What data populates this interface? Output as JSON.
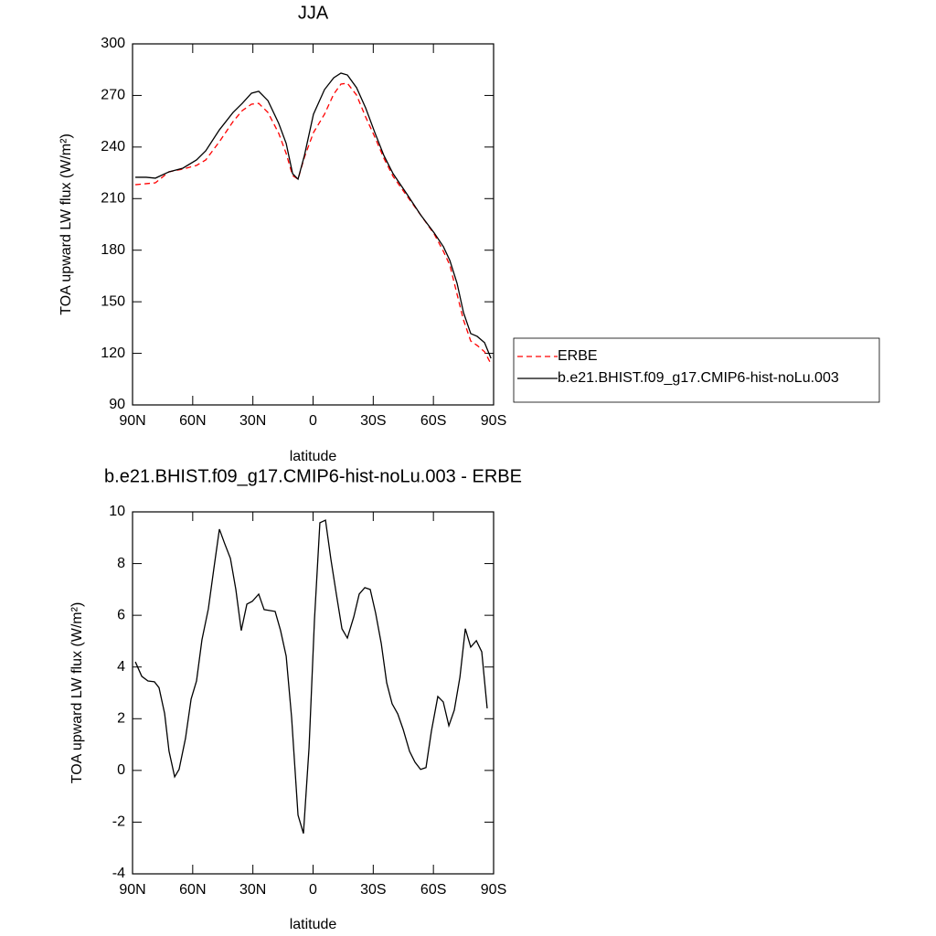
{
  "chart_data": [
    {
      "type": "line",
      "title": "JJA",
      "xlabel": "latitude",
      "ylabel": "TOA upward LW flux (W/m²)",
      "x": [
        88.6,
        83.2,
        78.6,
        71.8,
        64.9,
        58.1,
        53.5,
        46.7,
        39.9,
        35.3,
        30.7,
        27.1,
        22.5,
        17.1,
        13.4,
        10.2,
        7.5,
        4.3,
        -0.2,
        -5.7,
        -10.3,
        -13.9,
        -17.1,
        -21.7,
        -26.2,
        -30.8,
        -35.3,
        -39.9,
        -46.7,
        -53.6,
        -60.4,
        -65.0,
        -68.2,
        -71.8,
        -75.0,
        -78.6,
        -81.8,
        -85.5,
        -88.7
      ],
      "series": [
        {
          "name": "ERBE",
          "color": "#ff0000",
          "linestyle": "dashed",
          "values": [
            218.1,
            218.7,
            219.2,
            225.6,
            227.2,
            229.3,
            232.5,
            243.1,
            254.8,
            261.2,
            264.9,
            265.4,
            260.1,
            247.9,
            236.2,
            223.4,
            221.3,
            234.1,
            248.4,
            259.1,
            270.8,
            276.6,
            277.1,
            270.2,
            257.5,
            245.8,
            233.5,
            222.9,
            211.7,
            200.6,
            189.4,
            179.3,
            171.3,
            154.3,
            139.4,
            127.2,
            124.6,
            120.9,
            113.9
          ]
        },
        {
          "name": "b.e21.BHIST.f09_g17.CMIP6-hist-noLu.003",
          "color": "#000000",
          "linestyle": "solid",
          "values": [
            222.4,
            222.4,
            221.9,
            225.6,
            227.7,
            232.5,
            237.8,
            250.0,
            260.1,
            265.4,
            271.3,
            272.4,
            267.0,
            253.7,
            242.1,
            224.5,
            221.3,
            235.1,
            259.1,
            273.4,
            280.3,
            283.0,
            281.9,
            274.5,
            262.8,
            248.4,
            235.1,
            224.5,
            212.8,
            200.6,
            190.0,
            182.0,
            174.0,
            160.7,
            143.7,
            131.5,
            129.9,
            126.2,
            117.1
          ]
        }
      ],
      "xlim": [
        90,
        -90
      ],
      "xticks": [
        {
          "value": 90,
          "label": "90N"
        },
        {
          "value": 60,
          "label": "60N"
        },
        {
          "value": 30,
          "label": "30N"
        },
        0,
        {
          "value": -30,
          "label": "30S"
        },
        {
          "value": -60,
          "label": "60S"
        },
        {
          "value": -90,
          "label": "90S"
        }
      ],
      "ylim": [
        90,
        300
      ],
      "yticks": [
        90,
        120,
        150,
        180,
        210,
        240,
        270,
        300
      ],
      "legend": "outside-right"
    },
    {
      "type": "line",
      "title": "b.e21.BHIST.f09_g17.CMIP6-hist-noLu.003 - ERBE",
      "xlabel": "latitude",
      "ylabel": "TOA upward LW flux (W/m²)",
      "x": [
        88.6,
        85.4,
        82.3,
        79.1,
        76.8,
        74.0,
        71.8,
        69.0,
        66.8,
        63.6,
        60.8,
        58.1,
        55.4,
        52.2,
        49.4,
        46.7,
        44.0,
        41.2,
        38.5,
        35.8,
        33.0,
        30.3,
        27.1,
        24.4,
        18.9,
        16.2,
        13.4,
        10.7,
        7.5,
        4.8,
        2.0,
        -0.7,
        -3.4,
        -6.2,
        -8.9,
        -11.6,
        -14.4,
        -17.1,
        -20.3,
        -23.0,
        -25.8,
        -28.5,
        -31.2,
        -34.0,
        -36.7,
        -39.4,
        -42.2,
        -44.9,
        -48.1,
        -50.8,
        -53.6,
        -56.3,
        -59.0,
        -62.2,
        -64.9,
        -67.7,
        -70.4,
        -73.2,
        -75.9,
        -78.6,
        -81.4,
        -84.1,
        -86.8
      ],
      "values": [
        4.2,
        3.64,
        3.46,
        3.43,
        3.2,
        2.2,
        0.74,
        -0.25,
        0.04,
        1.24,
        2.76,
        3.46,
        5.05,
        6.25,
        7.84,
        9.33,
        8.76,
        8.2,
        7.0,
        5.41,
        6.43,
        6.54,
        6.82,
        6.22,
        6.15,
        5.41,
        4.42,
        2.05,
        -1.73,
        -2.44,
        0.88,
        5.83,
        9.58,
        9.68,
        8.16,
        6.82,
        5.48,
        5.12,
        5.94,
        6.82,
        7.07,
        7.0,
        6.08,
        4.91,
        3.39,
        2.58,
        2.19,
        1.59,
        0.74,
        0.32,
        0.04,
        0.11,
        1.52,
        2.86,
        2.65,
        1.73,
        2.33,
        3.6,
        5.48,
        4.77,
        5.02,
        4.59,
        2.4
      ],
      "color": "#000000",
      "xlim": [
        90,
        -90
      ],
      "xticks": [
        {
          "value": 90,
          "label": "90N"
        },
        {
          "value": 60,
          "label": "60N"
        },
        {
          "value": 30,
          "label": "30N"
        },
        0,
        {
          "value": -30,
          "label": "30S"
        },
        {
          "value": -60,
          "label": "60S"
        },
        {
          "value": -90,
          "label": "90S"
        }
      ],
      "ylim": [
        -4,
        10
      ],
      "yticks": [
        -4,
        -2,
        0,
        2,
        4,
        6,
        8,
        10
      ]
    }
  ]
}
